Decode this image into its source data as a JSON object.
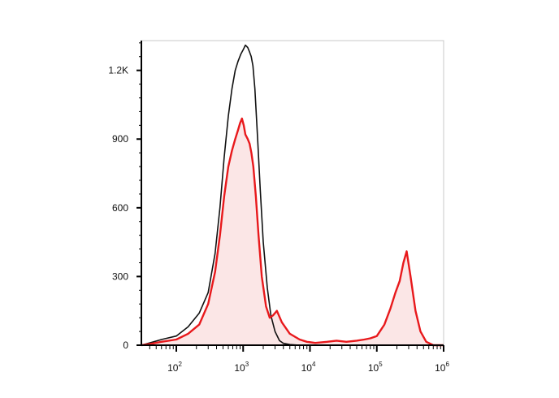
{
  "chart_data": {
    "type": "area",
    "title": "",
    "xlabel": "",
    "ylabel": "",
    "x_scale": "log",
    "xlim": [
      30,
      1000000
    ],
    "ylim": [
      0,
      1330
    ],
    "grid": false,
    "y_ticks": [
      {
        "value": 0,
        "label": "0"
      },
      {
        "value": 300,
        "label": "300"
      },
      {
        "value": 600,
        "label": "600"
      },
      {
        "value": 900,
        "label": "900"
      },
      {
        "value": 1200,
        "label": "1.2K"
      }
    ],
    "x_ticks": [
      {
        "value": 100,
        "base": "10",
        "exp": "2"
      },
      {
        "value": 1000,
        "base": "10",
        "exp": "3"
      },
      {
        "value": 10000,
        "base": "10",
        "exp": "4"
      },
      {
        "value": 100000,
        "base": "10",
        "exp": "5"
      },
      {
        "value": 1000000,
        "base": "10",
        "exp": "6"
      }
    ],
    "series": [
      {
        "color": "#111111",
        "fill": "none",
        "x": [
          30,
          40,
          60,
          100,
          150,
          220,
          300,
          380,
          450,
          520,
          600,
          680,
          760,
          840,
          920,
          1000,
          1080,
          1170,
          1250,
          1320,
          1400,
          1500,
          1650,
          1800,
          2000,
          2300,
          2600,
          3000,
          3500,
          4000,
          5000,
          7000,
          10000
        ],
        "y": [
          0,
          10,
          25,
          40,
          80,
          140,
          230,
          400,
          600,
          820,
          1000,
          1120,
          1200,
          1240,
          1270,
          1290,
          1310,
          1300,
          1280,
          1260,
          1220,
          1120,
          900,
          680,
          450,
          250,
          130,
          60,
          20,
          8,
          3,
          0,
          0
        ]
      },
      {
        "color": "#e8191c",
        "fill": "#fbe6e6",
        "x": [
          30,
          40,
          60,
          100,
          150,
          220,
          300,
          380,
          450,
          520,
          600,
          680,
          760,
          840,
          900,
          960,
          1020,
          1080,
          1170,
          1250,
          1330,
          1420,
          1550,
          1700,
          1900,
          2200,
          2500,
          2800,
          3200,
          3800,
          5000,
          7000,
          9000,
          12000,
          18000,
          25000,
          35000,
          50000,
          65000,
          80000,
          100000,
          130000,
          160000,
          190000,
          220000,
          250000,
          280000,
          320000,
          380000,
          450000,
          550000,
          700000,
          1000000
        ],
        "y": [
          0,
          5,
          15,
          25,
          50,
          90,
          180,
          320,
          480,
          650,
          780,
          850,
          900,
          940,
          970,
          990,
          960,
          920,
          900,
          880,
          840,
          780,
          650,
          480,
          300,
          170,
          120,
          130,
          150,
          100,
          50,
          25,
          15,
          10,
          15,
          20,
          15,
          20,
          25,
          30,
          40,
          90,
          160,
          230,
          280,
          360,
          410,
          300,
          150,
          60,
          15,
          0,
          0
        ]
      }
    ]
  }
}
